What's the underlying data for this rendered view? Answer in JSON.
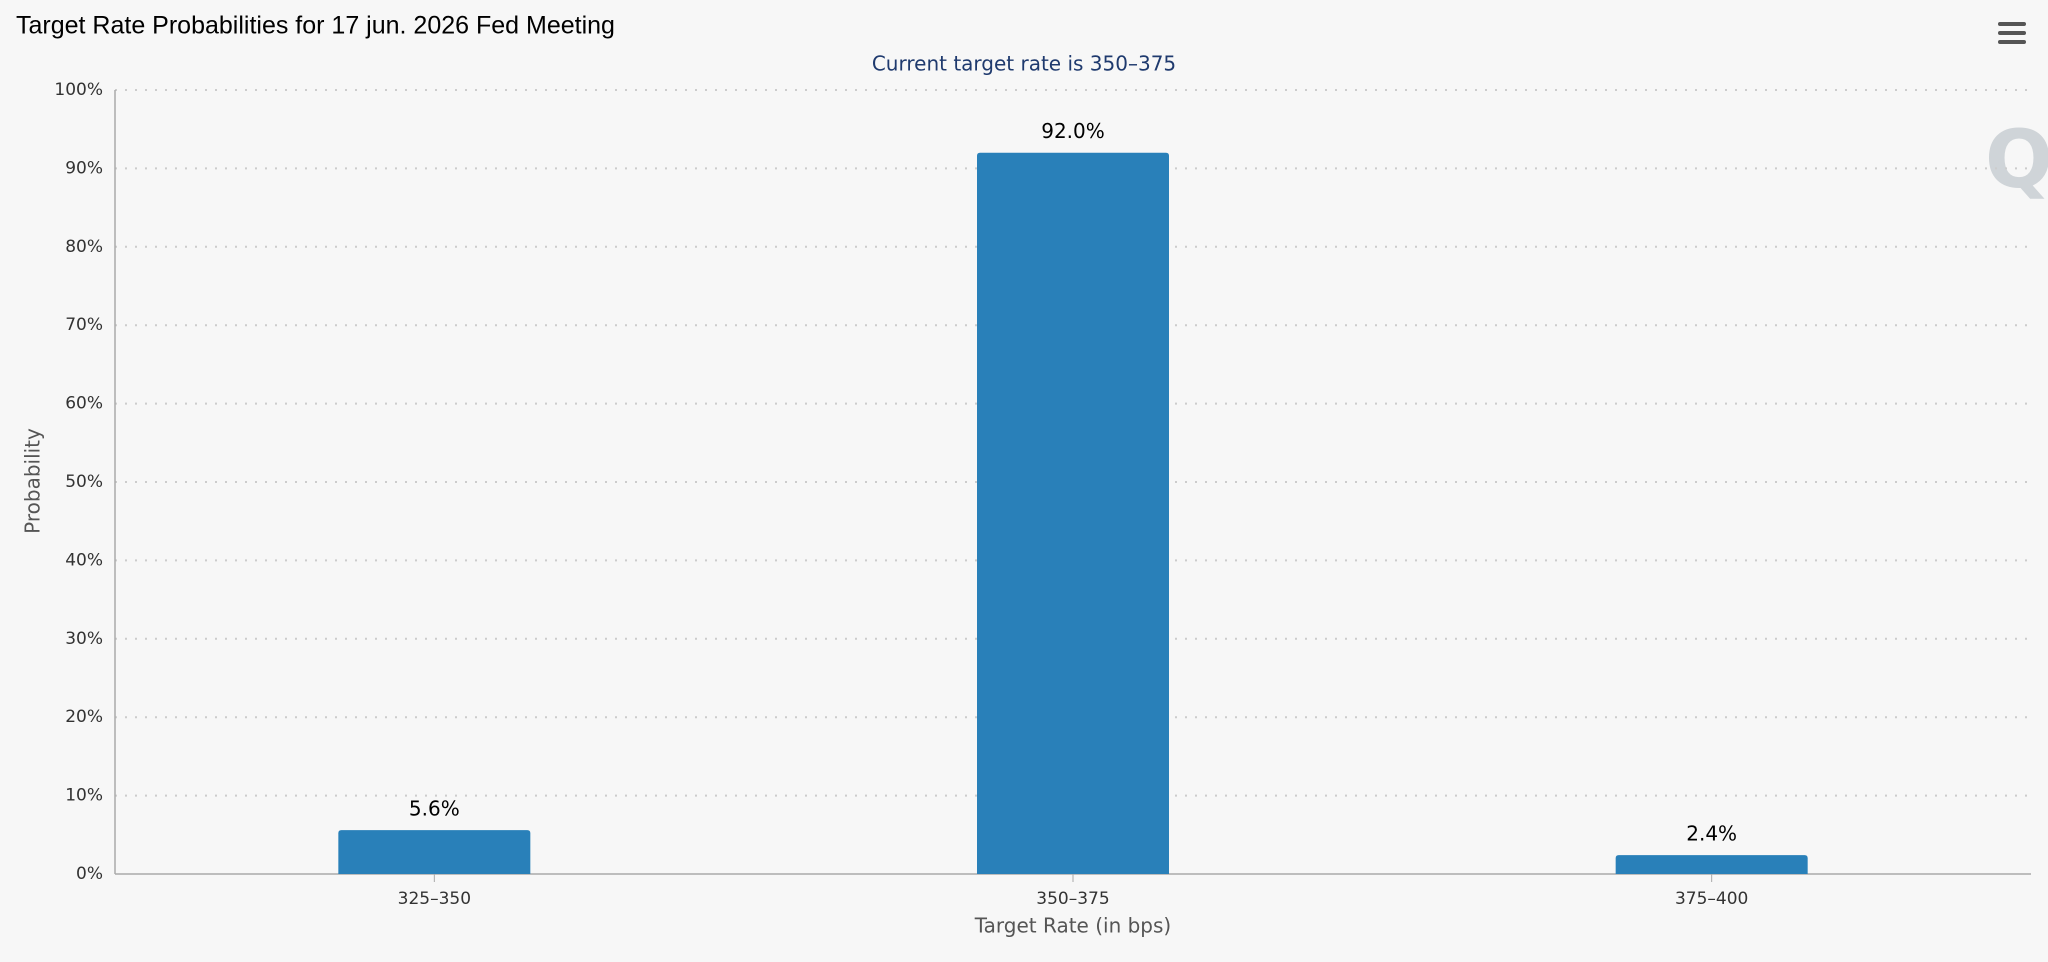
{
  "chart_data": {
    "type": "bar",
    "title": "Target Rate Probabilities for 17 jun. 2026 Fed Meeting",
    "subtitle": "Current target rate is 350–375",
    "x_label": "Target Rate (in bps)",
    "y_label": "Probability",
    "categories": [
      "325–350",
      "350–375",
      "375–400"
    ],
    "values": [
      5.6,
      92.0,
      2.4
    ],
    "value_labels": [
      "5.6%",
      "92.0%",
      "2.4%"
    ],
    "color": "#2980b9",
    "ylim": [
      0,
      100
    ],
    "yticks": [
      {
        "value": 0,
        "label": "0%"
      },
      {
        "value": 10,
        "label": "10%"
      },
      {
        "value": 20,
        "label": "20%"
      },
      {
        "value": 30,
        "label": "30%"
      },
      {
        "value": 40,
        "label": "40%"
      },
      {
        "value": 50,
        "label": "50%"
      },
      {
        "value": 60,
        "label": "60%"
      },
      {
        "value": 70,
        "label": "70%"
      },
      {
        "value": 80,
        "label": "80%"
      },
      {
        "value": 90,
        "label": "90%"
      },
      {
        "value": 100,
        "label": "100%"
      }
    ],
    "grid": true
  }
}
